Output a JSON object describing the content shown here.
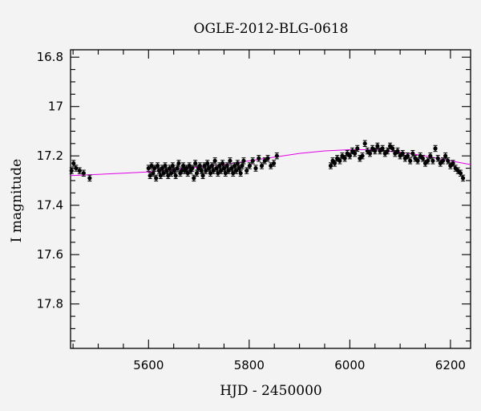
{
  "chart_data": {
    "type": "scatter",
    "title": "OGLE-2012-BLG-0618",
    "xlabel": "HJD - 2450000",
    "ylabel": "I magnitude",
    "xlim": [
      5445,
      6240
    ],
    "ylim": [
      17.98,
      16.77
    ],
    "y_inverted": true,
    "x_major_ticks": [
      5600,
      5800,
      6000,
      6200
    ],
    "x_tick_labels": [
      "5600",
      "5800",
      "6000",
      "6200"
    ],
    "y_major_ticks": [
      16.8,
      17.0,
      17.2,
      17.4,
      17.6,
      17.8
    ],
    "y_tick_labels": [
      "16.8",
      "17",
      "17.2",
      "17.4",
      "17.6",
      "17.8"
    ],
    "grid": false,
    "series": [
      {
        "style": "points-with-error-bars",
        "color": "#000000",
        "error": 0.012,
        "x": [
          5447,
          5451,
          5456,
          5463,
          5471,
          5483,
          5600,
          5603,
          5606,
          5609,
          5612,
          5615,
          5618,
          5621,
          5624,
          5627,
          5630,
          5633,
          5636,
          5639,
          5642,
          5645,
          5648,
          5651,
          5654,
          5657,
          5660,
          5663,
          5666,
          5669,
          5672,
          5675,
          5678,
          5681,
          5684,
          5687,
          5690,
          5693,
          5696,
          5699,
          5702,
          5705,
          5708,
          5711,
          5714,
          5717,
          5720,
          5723,
          5726,
          5729,
          5732,
          5735,
          5738,
          5741,
          5744,
          5747,
          5750,
          5753,
          5756,
          5759,
          5762,
          5765,
          5768,
          5771,
          5774,
          5777,
          5780,
          5783,
          5786,
          5789,
          5795,
          5801,
          5807,
          5813,
          5819,
          5825,
          5831,
          5837,
          5843,
          5849,
          5855,
          5962,
          5966,
          5970,
          5975,
          5980,
          5985,
          5990,
          5995,
          6000,
          6005,
          6010,
          6015,
          6020,
          6025,
          6030,
          6035,
          6040,
          6045,
          6050,
          6055,
          6060,
          6065,
          6070,
          6075,
          6080,
          6085,
          6090,
          6095,
          6100,
          6105,
          6110,
          6115,
          6120,
          6125,
          6130,
          6135,
          6140,
          6145,
          6150,
          6155,
          6160,
          6165,
          6170,
          6175,
          6180,
          6185,
          6190,
          6195,
          6200,
          6205,
          6210,
          6215,
          6220,
          6225
        ],
        "y": [
          17.26,
          17.23,
          17.25,
          17.26,
          17.27,
          17.29,
          17.25,
          17.28,
          17.24,
          17.27,
          17.25,
          17.29,
          17.24,
          17.26,
          17.28,
          17.25,
          17.27,
          17.24,
          17.26,
          17.28,
          17.25,
          17.27,
          17.24,
          17.26,
          17.28,
          17.25,
          17.23,
          17.27,
          17.26,
          17.24,
          17.26,
          17.25,
          17.27,
          17.24,
          17.26,
          17.25,
          17.29,
          17.23,
          17.27,
          17.25,
          17.24,
          17.26,
          17.28,
          17.24,
          17.26,
          17.23,
          17.25,
          17.27,
          17.24,
          17.26,
          17.22,
          17.25,
          17.27,
          17.24,
          17.26,
          17.23,
          17.25,
          17.27,
          17.24,
          17.26,
          17.22,
          17.25,
          17.27,
          17.24,
          17.26,
          17.23,
          17.25,
          17.27,
          17.24,
          17.22,
          17.26,
          17.24,
          17.22,
          17.25,
          17.21,
          17.24,
          17.22,
          17.21,
          17.24,
          17.23,
          17.2,
          17.24,
          17.22,
          17.23,
          17.21,
          17.22,
          17.2,
          17.21,
          17.19,
          17.2,
          17.18,
          17.19,
          17.17,
          17.21,
          17.2,
          17.15,
          17.18,
          17.19,
          17.17,
          17.18,
          17.16,
          17.18,
          17.17,
          17.19,
          17.18,
          17.16,
          17.17,
          17.19,
          17.18,
          17.2,
          17.19,
          17.21,
          17.2,
          17.22,
          17.19,
          17.21,
          17.22,
          17.2,
          17.21,
          17.23,
          17.22,
          17.2,
          17.22,
          17.17,
          17.21,
          17.23,
          17.22,
          17.2,
          17.22,
          17.24,
          17.23,
          17.25,
          17.26,
          17.27,
          17.29
        ]
      },
      {
        "style": "line",
        "color": "#e100e6",
        "x": [
          5445,
          5500,
          5550,
          5600,
          5650,
          5700,
          5750,
          5800,
          5850,
          5900,
          5950,
          6000,
          6050,
          6100,
          6150,
          6200,
          6240
        ],
        "y": [
          17.28,
          17.275,
          17.27,
          17.265,
          17.255,
          17.245,
          17.235,
          17.22,
          17.205,
          17.19,
          17.18,
          17.175,
          17.175,
          17.185,
          17.2,
          17.22,
          17.235
        ]
      }
    ]
  }
}
